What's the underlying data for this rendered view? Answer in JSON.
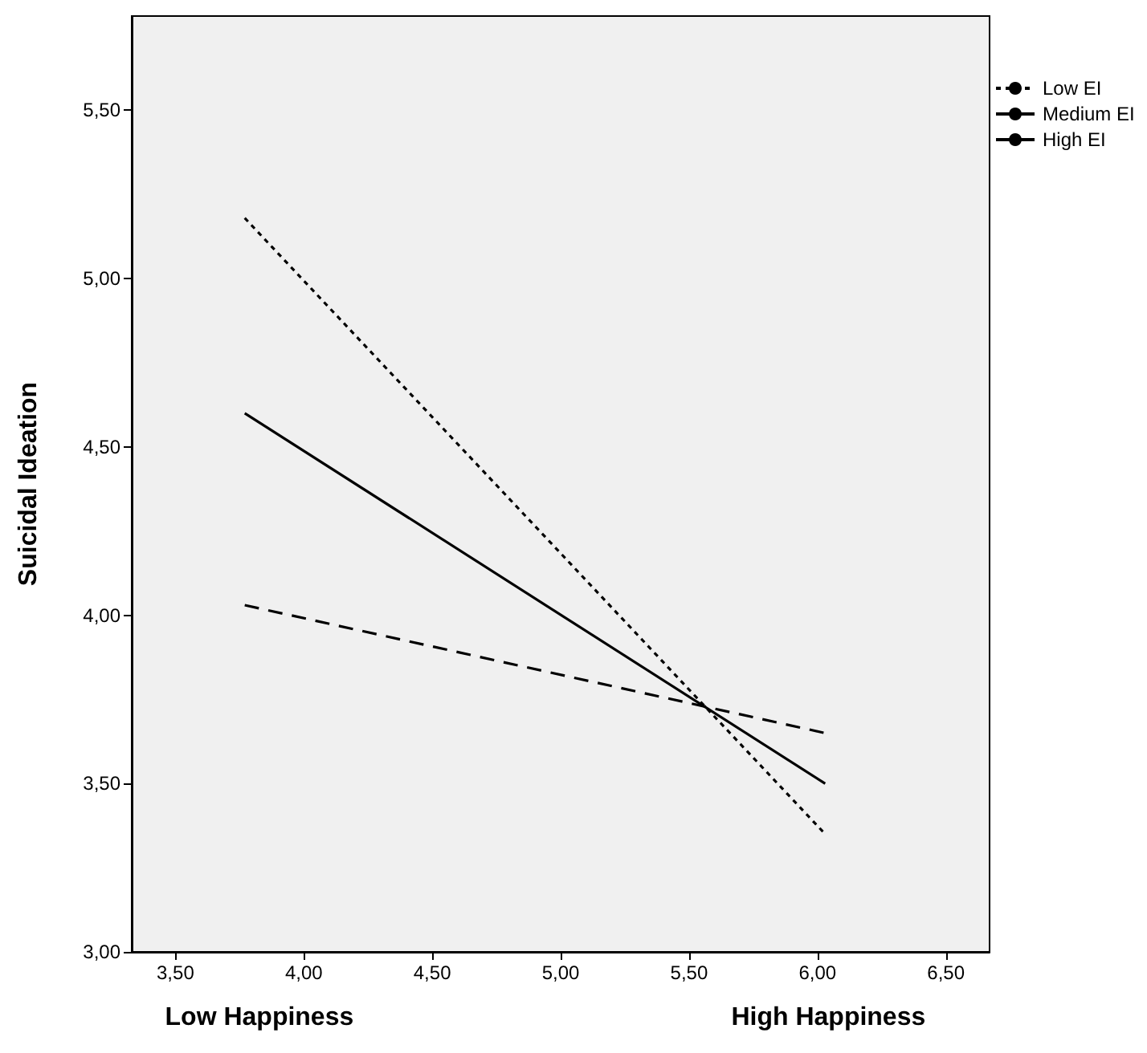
{
  "chart_data": {
    "type": "line",
    "ylabel": "Suicidal Ideation",
    "annotations": [
      "Low Happiness",
      "High Happiness"
    ],
    "xlim": [
      3.33,
      6.67
    ],
    "ylim": [
      3.0,
      5.78
    ],
    "xticks": [
      {
        "value": 3.5,
        "label": "3,50"
      },
      {
        "value": 4.0,
        "label": "4,00"
      },
      {
        "value": 4.5,
        "label": "4,50"
      },
      {
        "value": 5.0,
        "label": "5,00"
      },
      {
        "value": 5.5,
        "label": "5,50"
      },
      {
        "value": 6.0,
        "label": "6,00"
      },
      {
        "value": 6.5,
        "label": "6,50"
      }
    ],
    "yticks": [
      {
        "value": 3.0,
        "label": "3,00"
      },
      {
        "value": 3.5,
        "label": "3,50"
      },
      {
        "value": 4.0,
        "label": "4,00"
      },
      {
        "value": 4.5,
        "label": "4,50"
      },
      {
        "value": 5.0,
        "label": "5,00"
      },
      {
        "value": 5.5,
        "label": "5,50"
      }
    ],
    "x": [
      3.77,
      6.03
    ],
    "series": [
      {
        "name": "Low EI",
        "color": "#000000",
        "line_style": "dotted",
        "values": [
          5.18,
          3.35
        ]
      },
      {
        "name": "Medium EI",
        "color": "#000000",
        "line_style": "solid",
        "values": [
          4.6,
          3.5
        ]
      },
      {
        "name": "High EI",
        "color": "#000000",
        "line_style": "dashed",
        "values": [
          4.03,
          3.65
        ]
      }
    ],
    "grid": false,
    "legend": "top right",
    "marker": "none"
  }
}
